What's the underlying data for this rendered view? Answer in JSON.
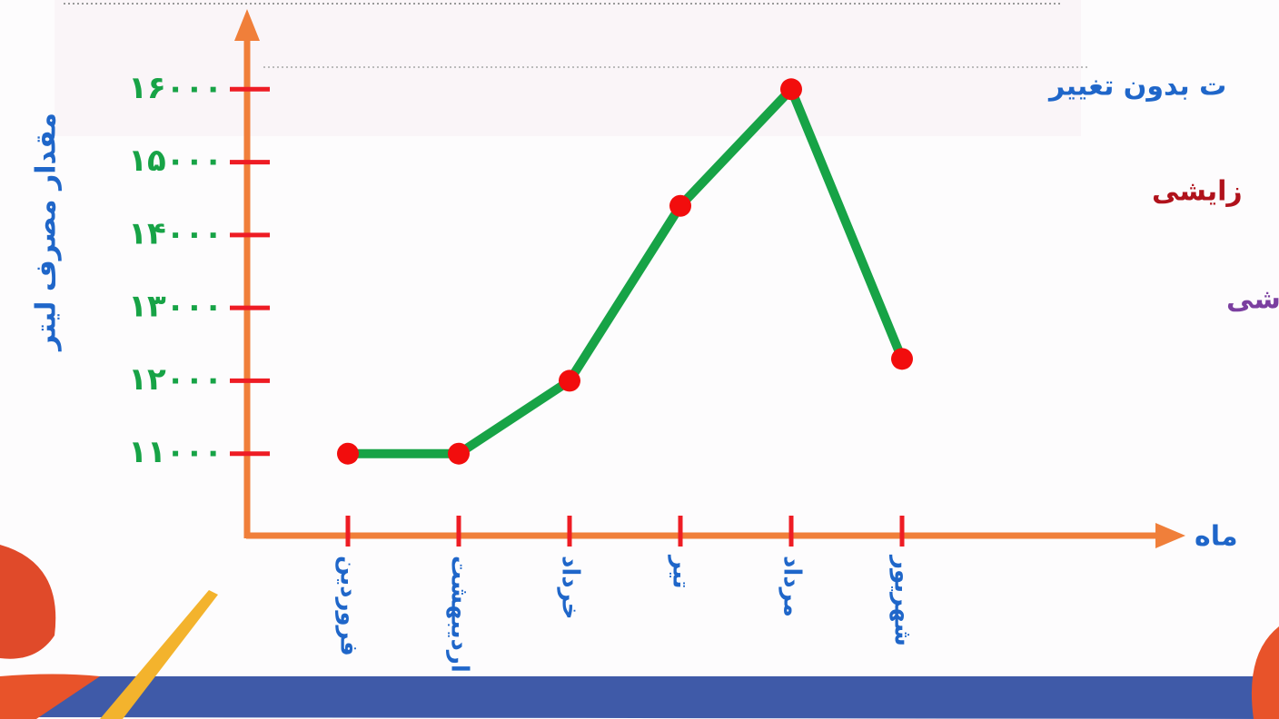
{
  "chart_data": {
    "type": "line",
    "y_label": "مقدار مصرف لیتر",
    "x_label": "ماه",
    "categories": [
      "فروردین",
      "اردیبهشت",
      "خرداد",
      "تیر",
      "مرداد",
      "شهریور"
    ],
    "values": [
      11000,
      11000,
      12000,
      14400,
      16000,
      12300
    ],
    "color": "#17a346",
    "point_color": "#f20d0d",
    "axis_color": "#f07f3a",
    "tick_color": "#ee1c24",
    "ylim": [
      10000,
      17000
    ],
    "yticks": [
      {
        "value": 11000,
        "label": "۱۱۰۰۰"
      },
      {
        "value": 12000,
        "label": "۱۲۰۰۰"
      },
      {
        "value": 13000,
        "label": "۱۳۰۰۰"
      },
      {
        "value": 14000,
        "label": "۱۴۰۰۰"
      },
      {
        "value": 15000,
        "label": "۱۵۰۰۰"
      },
      {
        "value": 16000,
        "label": "۱۶۰۰۰"
      }
    ],
    "annotations": [
      {
        "text": "ت بدون تغییر",
        "color": "#1f66c9"
      },
      {
        "text": "زایشی",
        "color": "#b0121b"
      },
      {
        "text": "شی",
        "color": "#7b3fa0"
      }
    ]
  }
}
